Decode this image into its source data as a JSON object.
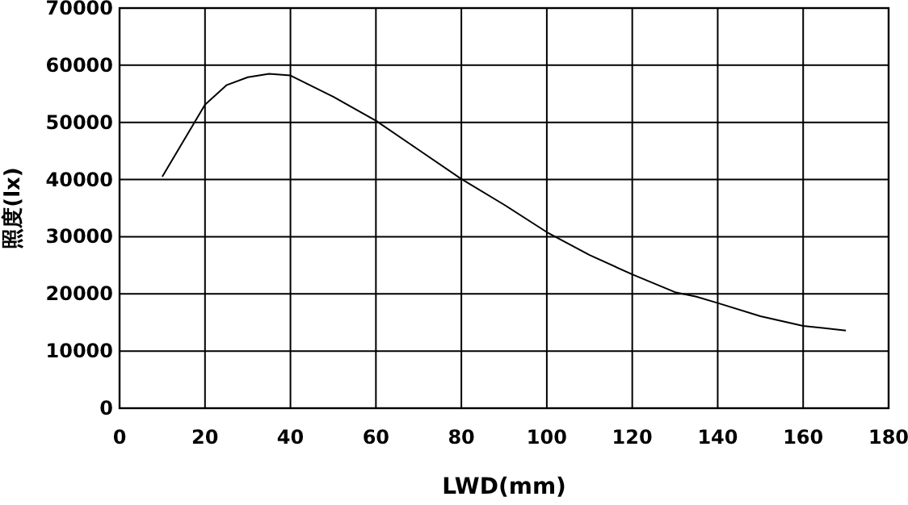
{
  "chart_data": {
    "type": "line",
    "xlabel": "LWD(mm)",
    "ylabel": "照度(lx)",
    "x": [
      10,
      20,
      25,
      30,
      35,
      40,
      50,
      60,
      70,
      80,
      90,
      100,
      110,
      120,
      130,
      135,
      140,
      150,
      160,
      170
    ],
    "series": [
      {
        "color": "#000000",
        "values": [
          40500,
          53100,
          56500,
          57900,
          58500,
          58200,
          54500,
          50300,
          45200,
          40100,
          35600,
          30800,
          26800,
          23400,
          20300,
          19500,
          18400,
          16100,
          14400,
          13600
        ]
      }
    ],
    "xlim": [
      0,
      180
    ],
    "xticks": [
      0,
      20,
      40,
      60,
      80,
      100,
      120,
      140,
      160,
      180
    ],
    "ylim": [
      0,
      70000
    ],
    "yticks": [
      0,
      10000,
      20000,
      30000,
      40000,
      50000,
      60000,
      70000
    ],
    "grid": true,
    "marker": "none",
    "line_style": "solid"
  }
}
